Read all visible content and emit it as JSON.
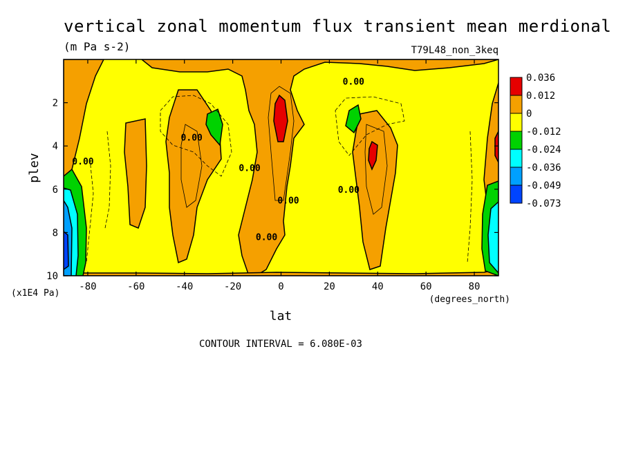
{
  "chart_data": {
    "type": "heatmap",
    "title": "vertical zonal momentum flux transient mean merdional",
    "subtitle": "(m Pa s-2)",
    "run_label": "T79L48_non_3keq",
    "xlabel": "lat",
    "xunits": "(degrees_north)",
    "ylabel": "plev",
    "yunits": "(x1E4 Pa)",
    "xlim": [
      -90,
      90
    ],
    "ylim": [
      10,
      0
    ],
    "x_ticks": [
      -80,
      -60,
      -40,
      -20,
      0,
      20,
      40,
      60,
      80
    ],
    "x_tick_labels": [
      "-80",
      "-60",
      "-40",
      "-20",
      "0",
      "20",
      "40",
      "60",
      "80"
    ],
    "y_ticks": [
      2,
      4,
      6,
      8,
      10
    ],
    "y_tick_labels": [
      "2",
      "4",
      "6",
      "8",
      "10"
    ],
    "colorbar": {
      "labels": [
        "0.036",
        "0.012",
        "0",
        "-0.012",
        "-0.024",
        "-0.036",
        "-0.049",
        "-0.073"
      ],
      "colors": [
        "#e60000",
        "#f5a000",
        "#ffff00",
        "#00d200",
        "#00ffff",
        "#00a0ff",
        "#0044ff"
      ]
    },
    "contour_labels": [
      {
        "text": "0.00",
        "lat": 30,
        "plev": 1.0
      },
      {
        "text": "0.00",
        "lat": -37,
        "plev": 3.6
      },
      {
        "text": "0.00",
        "lat": -82,
        "plev": 4.7
      },
      {
        "text": "0.00",
        "lat": -13,
        "plev": 5.0
      },
      {
        "text": "0.00",
        "lat": 3,
        "plev": 6.5
      },
      {
        "text": "0.00",
        "lat": 28,
        "plev": 6.0
      },
      {
        "text": "0.00",
        "lat": -6,
        "plev": 8.2
      }
    ],
    "contour_interval_text": "CONTOUR INTERVAL = 6.080E-03"
  }
}
